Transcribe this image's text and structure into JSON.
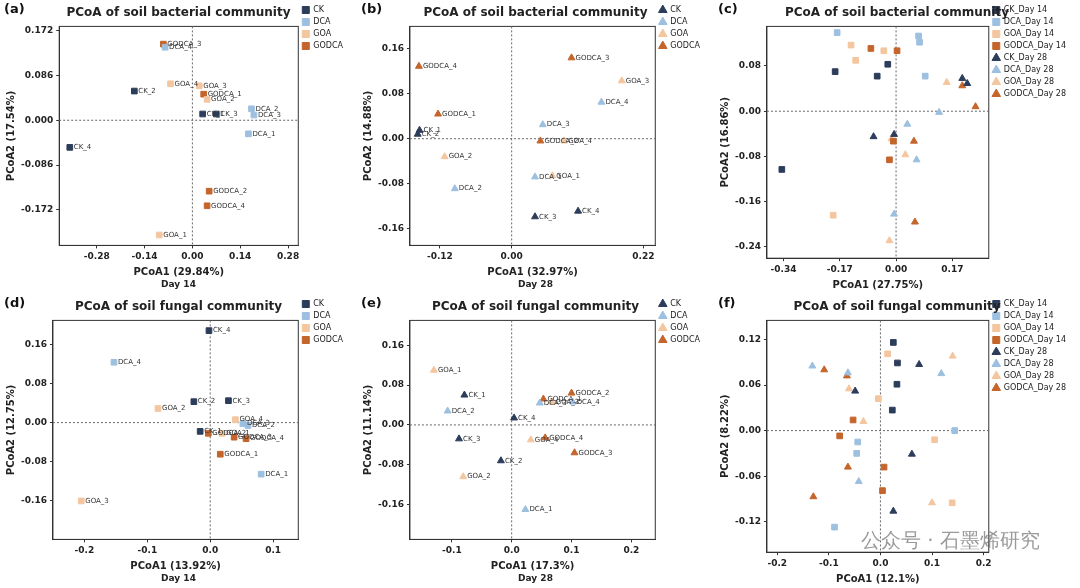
{
  "watermark": "公众号 · 石墨烯研究",
  "chart_data": [
    {
      "type": "scatter",
      "panel": "(a)",
      "title": "PCoA of soil bacterial community",
      "xlabel": "PCoA1 (29.84%)",
      "ylabel": "PCoA2 (17.54%)",
      "subtitle": "Day 14",
      "xlim": [
        -0.39,
        0.31
      ],
      "ylim": [
        -0.24,
        0.18
      ],
      "xticks": [
        -0.28,
        -0.14,
        {
          "value": 0,
          "label": "0.00"
        },
        0.14,
        0.28
      ],
      "yticks": [
        -0.172,
        -0.086,
        {
          "value": 0,
          "label": "0.000"
        },
        0.086,
        0.172
      ],
      "grid": false,
      "legend": "right",
      "annotations": [
        {
          "x": 0
        },
        {
          "y": 0
        }
      ],
      "series": [
        {
          "name": "CK",
          "color": "#2c3d5b",
          "marker": "square",
          "x": [
            0.03,
            -0.17,
            0.07,
            -0.359
          ],
          "y": [
            0.012,
            0.056,
            0.012,
            -0.052
          ],
          "point_labels": [
            "CK_1",
            "CK_2",
            "CK_3",
            "CK_4"
          ]
        },
        {
          "name": "DCA",
          "color": "#9dbfe0",
          "marker": "square",
          "x": [
            0.164,
            0.173,
            0.18,
            -0.08
          ],
          "y": [
            -0.026,
            0.022,
            0.01,
            0.14
          ],
          "point_labels": [
            "DCA_1",
            "DCA_2",
            "DCA_3",
            "DCA_4"
          ]
        },
        {
          "name": "GOA",
          "color": "#f3c69f",
          "marker": "square",
          "x": [
            -0.097,
            0.043,
            0.02,
            -0.064
          ],
          "y": [
            -0.22,
            0.04,
            0.066,
            0.07
          ],
          "point_labels": [
            "GOA_1",
            "GOA_2",
            "GOA_3",
            "GOA_4"
          ]
        },
        {
          "name": "GODCA",
          "color": "#c4652c",
          "marker": "square",
          "x": [
            0.033,
            0.049,
            -0.085,
            0.043
          ],
          "y": [
            0.05,
            -0.136,
            0.146,
            -0.164
          ],
          "point_labels": [
            "GODCA_1",
            "GODCA_2",
            "GODCA_3",
            "GODCA_4"
          ]
        }
      ]
    },
    {
      "type": "scatter",
      "panel": "(b)",
      "title": "PCoA of soil bacterial community",
      "xlabel": "PCoA1 (32.97%)",
      "ylabel": "PCoA2 (14.88%)",
      "subtitle": "Day 28",
      "xlim": [
        -0.17,
        0.24
      ],
      "ylim": [
        -0.19,
        0.2
      ],
      "xticks": [
        -0.12,
        {
          "value": 0,
          "label": "0.00"
        },
        0.22
      ],
      "yticks": [
        -0.16,
        -0.08,
        {
          "value": 0,
          "label": "0.00"
        },
        0.08,
        0.16
      ],
      "grid": false,
      "legend": "right",
      "annotations": [
        {
          "x": 0
        },
        {
          "y": 0
        }
      ],
      "series": [
        {
          "name": "CK",
          "color": "#2c3d5b",
          "marker": "triangle",
          "x": [
            -0.154,
            -0.157,
            0.039,
            0.111
          ],
          "y": [
            0.015,
            0.008,
            -0.139,
            -0.129
          ],
          "point_labels": [
            "CK_1",
            "CK_2",
            "CK_3",
            "CK_4"
          ]
        },
        {
          "name": "DCA",
          "color": "#9dbfe0",
          "marker": "triangle",
          "x": [
            0.039,
            -0.095,
            0.052,
            0.15
          ],
          "y": [
            -0.068,
            -0.089,
            0.025,
            0.065
          ],
          "point_labels": [
            "DCA_1",
            "DCA_2",
            "DCA_3",
            "DCA_4"
          ]
        },
        {
          "name": "GOA",
          "color": "#f3c69f",
          "marker": "triangle",
          "x": [
            0.068,
            -0.112,
            0.184,
            0.088
          ],
          "y": [
            -0.066,
            -0.032,
            0.103,
            -0.004
          ],
          "point_labels": [
            "GOA_1",
            "GOA_2",
            "GOA_3",
            "GOA_4"
          ]
        },
        {
          "name": "GODCA",
          "color": "#c4652c",
          "marker": "triangle",
          "x": [
            -0.123,
            0.048,
            0.1,
            -0.155
          ],
          "y": [
            0.044,
            -0.004,
            0.144,
            0.129
          ],
          "point_labels": [
            "GODCA_1",
            "GODCA_2",
            "GODCA_3",
            "GODCA_4"
          ]
        }
      ]
    },
    {
      "type": "scatter",
      "panel": "(c)",
      "title": "PCoA of soil bacterial community",
      "xlabel": "PCoA1 (27.75%)",
      "ylabel": "PCoA2 (16.86%)",
      "xlim": [
        -0.39,
        0.28
      ],
      "ylim": [
        -0.26,
        0.15
      ],
      "xticks": [
        -0.34,
        -0.17,
        {
          "value": 0,
          "label": "0.00"
        },
        0.17
      ],
      "yticks": [
        -0.24,
        -0.16,
        -0.08,
        {
          "value": 0,
          "label": "0.00"
        },
        0.08
      ],
      "grid": false,
      "legend": "right",
      "annotations": [
        {
          "x": 0
        },
        {
          "y": 0
        }
      ],
      "series": [
        {
          "name": "CK_Day 14",
          "color": "#2c3d5b",
          "marker": "square",
          "x": [
            -0.345,
            -0.184,
            -0.057,
            -0.025
          ],
          "y": [
            -0.103,
            0.07,
            0.062,
            0.083
          ]
        },
        {
          "name": "DCA_Day 14",
          "color": "#9dbfe0",
          "marker": "square",
          "x": [
            -0.178,
            0.068,
            0.071,
            0.088
          ],
          "y": [
            0.139,
            0.133,
            0.122,
            0.062
          ]
        },
        {
          "name": "GOA_Day 14",
          "color": "#f3c69f",
          "marker": "square",
          "x": [
            -0.136,
            -0.122,
            -0.037,
            -0.19
          ],
          "y": [
            0.117,
            0.09,
            0.107,
            -0.184
          ]
        },
        {
          "name": "GODCA_Day 14",
          "color": "#c4652c",
          "marker": "square",
          "x": [
            -0.076,
            0.003,
            -0.008,
            -0.02
          ],
          "y": [
            0.111,
            0.107,
            -0.053,
            -0.086
          ]
        },
        {
          "name": "CK_Day 28",
          "color": "#2c3d5b",
          "marker": "triangle",
          "x": [
            -0.068,
            -0.006,
            0.2,
            0.215
          ],
          "y": [
            -0.045,
            -0.041,
            0.058,
            0.049
          ]
        },
        {
          "name": "DCA_Day 28",
          "color": "#9dbfe0",
          "marker": "triangle",
          "x": [
            0.034,
            0.13,
            0.062,
            -0.006
          ],
          "y": [
            -0.023,
            -0.002,
            -0.086,
            -0.182
          ]
        },
        {
          "name": "GOA_Day 28",
          "color": "#f3c69f",
          "marker": "triangle",
          "x": [
            0.153,
            0.028,
            -0.014,
            -0.02
          ],
          "y": [
            0.051,
            -0.077,
            -0.049,
            -0.229
          ]
        },
        {
          "name": "GODCA_Day 28",
          "color": "#c4652c",
          "marker": "triangle",
          "x": [
            0.054,
            0.2,
            0.24,
            0.057
          ],
          "y": [
            -0.053,
            0.045,
            0.008,
            -0.196
          ]
        }
      ]
    },
    {
      "type": "scatter",
      "panel": "(d)",
      "title": "PCoA of soil fungal community",
      "xlabel": "PCoA1 (13.92%)",
      "ylabel": "PCoA2 (12.75%)",
      "subtitle": "Day 14",
      "xlim": [
        -0.25,
        0.14
      ],
      "ylim": [
        -0.24,
        0.21
      ],
      "xticks": [
        -0.2,
        -0.1,
        {
          "value": 0,
          "label": "0.0"
        },
        0.1
      ],
      "yticks": [
        -0.16,
        -0.08,
        {
          "value": 0,
          "label": "0.00"
        },
        0.08,
        0.16
      ],
      "grid": false,
      "legend": "right",
      "annotations": [
        {
          "x": 0
        },
        {
          "y": 0
        }
      ],
      "series": [
        {
          "name": "CK",
          "color": "#2c3d5b",
          "marker": "square",
          "x": [
            -0.016,
            -0.026,
            0.029,
            -0.002
          ],
          "y": [
            -0.018,
            0.043,
            0.045,
            0.189
          ],
          "point_labels": [
            "CK_1",
            "CK_2",
            "CK_3",
            "CK_4"
          ]
        },
        {
          "name": "DCA",
          "color": "#9dbfe0",
          "marker": "square",
          "x": [
            0.081,
            0.06,
            0.052,
            -0.153
          ],
          "y": [
            -0.106,
            -0.006,
            -0.002,
            0.124
          ],
          "point_labels": [
            "DCA_1",
            "DCA_2",
            "DCA_3",
            "DCA_4"
          ]
        },
        {
          "name": "GOA",
          "color": "#f3c69f",
          "marker": "square",
          "x": [
            0.019,
            -0.083,
            -0.205,
            0.04
          ],
          "y": [
            -0.022,
            0.029,
            -0.161,
            0.006
          ],
          "point_labels": [
            "GOA_1",
            "GOA_2",
            "GOA_3",
            "GOA_4"
          ]
        },
        {
          "name": "GODCA",
          "color": "#c4652c",
          "marker": "square",
          "x": [
            0.016,
            -0.003,
            0.038,
            0.057
          ],
          "y": [
            -0.065,
            -0.022,
            -0.03,
            -0.033
          ],
          "point_labels": [
            "GODCA_1",
            "GODCA_2",
            "GODCA_3",
            "GODCA_4"
          ]
        }
      ]
    },
    {
      "type": "scatter",
      "panel": "(e)",
      "title": "PCoA of soil fungal community",
      "xlabel": "PCoA1 (17.3%)",
      "ylabel": "PCoA2 (11.14%)",
      "subtitle": "Day 28",
      "xlim": [
        -0.17,
        0.24
      ],
      "ylim": [
        -0.23,
        0.21
      ],
      "xticks": [
        -0.1,
        {
          "value": 0,
          "label": "0.0"
        },
        0.1,
        0.2
      ],
      "yticks": [
        -0.16,
        -0.08,
        {
          "value": 0,
          "label": "0.00"
        },
        0.08,
        0.16
      ],
      "grid": false,
      "legend": "right",
      "annotations": [
        {
          "x": 0
        },
        {
          "y": 0
        }
      ],
      "series": [
        {
          "name": "CK",
          "color": "#2c3d5b",
          "marker": "triangle",
          "x": [
            -0.079,
            -0.018,
            -0.088,
            0.004
          ],
          "y": [
            0.06,
            -0.072,
            -0.028,
            0.014
          ],
          "point_labels": [
            "CK_1",
            "CK_2",
            "CK_3",
            "CK_4"
          ]
        },
        {
          "name": "DCA",
          "color": "#9dbfe0",
          "marker": "triangle",
          "x": [
            0.023,
            -0.107,
            0.047,
            0.102
          ],
          "y": [
            -0.17,
            0.028,
            0.044,
            0.046
          ],
          "point_labels": [
            "DCA_1",
            "DCA_2",
            "DCA_3",
            "DCA_4"
          ]
        },
        {
          "name": "GOA",
          "color": "#f3c69f",
          "marker": "triangle",
          "x": [
            -0.13,
            -0.081,
            0.067,
            0.032
          ],
          "y": [
            0.11,
            -0.104,
            0.046,
            -0.03
          ],
          "point_labels": [
            "GOA_1",
            "GOA_2",
            "GOA_3",
            "GOA_4"
          ]
        },
        {
          "name": "GODCA",
          "color": "#c4652c",
          "marker": "triangle",
          "x": [
            0.053,
            0.1,
            0.105,
            0.056
          ],
          "y": [
            0.052,
            0.064,
            -0.056,
            -0.026
          ],
          "point_labels": [
            "GODCA_1",
            "GODCA_2",
            "GODCA_3",
            "GODCA_4"
          ]
        }
      ]
    },
    {
      "type": "scatter",
      "panel": "(f)",
      "title": "PCoA of soil fungal community",
      "xlabel": "PCoA1 (12.1%)",
      "ylabel": "PCoA2 (8.22%)",
      "xlim": [
        -0.22,
        0.21
      ],
      "ylim": [
        -0.16,
        0.145
      ],
      "xticks": [
        -0.2,
        -0.1,
        {
          "value": 0,
          "label": "0.0"
        },
        0.1,
        0.2
      ],
      "yticks": [
        -0.12,
        -0.06,
        {
          "value": 0,
          "label": "0.00"
        },
        0.06,
        0.12
      ],
      "grid": false,
      "legend": "right",
      "annotations": [
        {
          "x": 0
        },
        {
          "y": 0
        }
      ],
      "series": [
        {
          "name": "CK_Day 14",
          "color": "#2c3d5b",
          "marker": "square",
          "x": [
            0.025,
            0.033,
            0.032,
            0.023
          ],
          "y": [
            0.116,
            0.089,
            0.061,
            0.027
          ]
        },
        {
          "name": "DCA_Day 14",
          "color": "#9dbfe0",
          "marker": "square",
          "x": [
            0.144,
            -0.044,
            -0.089,
            -0.046
          ],
          "y": [
            0.0,
            -0.015,
            -0.127,
            -0.03
          ]
        },
        {
          "name": "GOA_Day 14",
          "color": "#f3c69f",
          "marker": "square",
          "x": [
            0.014,
            -0.004,
            0.105,
            0.139
          ],
          "y": [
            0.101,
            0.042,
            -0.012,
            -0.095
          ]
        },
        {
          "name": "GODCA_Day 14",
          "color": "#c4652c",
          "marker": "square",
          "x": [
            -0.079,
            0.007,
            0.004,
            -0.053
          ],
          "y": [
            -0.007,
            -0.048,
            -0.079,
            0.014
          ]
        },
        {
          "name": "CK_Day 28",
          "color": "#2c3d5b",
          "marker": "triangle",
          "x": [
            0.025,
            0.061,
            0.075,
            -0.049
          ],
          "y": [
            -0.106,
            -0.031,
            0.087,
            0.052
          ]
        },
        {
          "name": "DCA_Day 28",
          "color": "#9dbfe0",
          "marker": "triangle",
          "x": [
            -0.132,
            -0.063,
            -0.042,
            0.118
          ],
          "y": [
            0.085,
            0.076,
            -0.067,
            0.075
          ]
        },
        {
          "name": "GOA_Day 28",
          "color": "#f3c69f",
          "marker": "triangle",
          "x": [
            -0.061,
            -0.033,
            0.1,
            0.14
          ],
          "y": [
            0.055,
            0.012,
            -0.095,
            0.098
          ]
        },
        {
          "name": "GODCA_Day 28",
          "color": "#c4652c",
          "marker": "triangle",
          "x": [
            -0.109,
            -0.065,
            -0.063,
            -0.13
          ],
          "y": [
            0.08,
            0.072,
            -0.048,
            -0.087
          ]
        }
      ]
    }
  ]
}
